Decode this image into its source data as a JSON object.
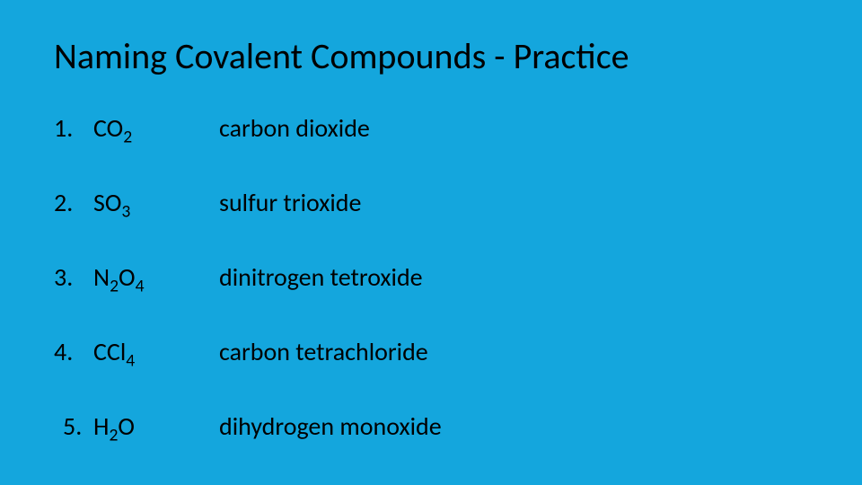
{
  "background_color": "#14a6dd",
  "text_color": "#000000",
  "title": "Naming Covalent Compounds - Practice",
  "title_fontsize": 40,
  "row_fontsize": 28,
  "items": [
    {
      "num": "1.",
      "formula": "CO",
      "sub": "2",
      "formula2": "",
      "sub2": "",
      "name": "carbon dioxide",
      "indent": false
    },
    {
      "num": "2.",
      "formula": "SO",
      "sub": "3",
      "formula2": "",
      "sub2": "",
      "name": "sulfur trioxide",
      "indent": false
    },
    {
      "num": "3.",
      "formula": "N",
      "sub": "2",
      "formula2": "O",
      "sub2": "4",
      "name": "dinitrogen tetroxide",
      "indent": false
    },
    {
      "num": "4.",
      "formula": "CCl",
      "sub": "4",
      "formula2": "",
      "sub2": "",
      "name": "carbon tetrachloride",
      "indent": false
    },
    {
      "num": "5.",
      "formula": "H",
      "sub": "2",
      "formula2": "O",
      "sub2": "",
      "name": "dihydrogen monoxide",
      "indent": true
    }
  ]
}
